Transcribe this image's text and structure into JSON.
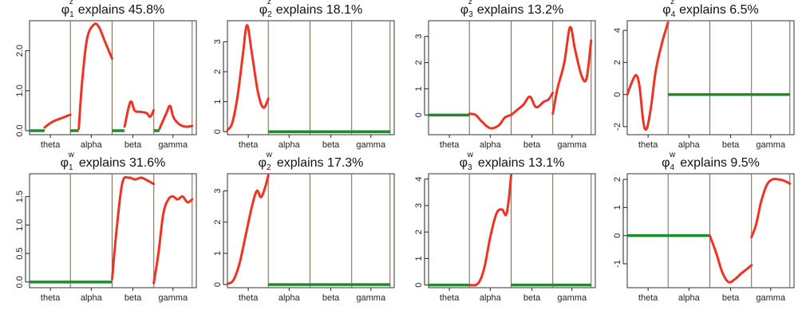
{
  "colors": {
    "curve": "#ee3322",
    "zero": "#1e8c2e",
    "divider": "#7a6450",
    "frame": "#333333",
    "axis": "#222222"
  },
  "chart_data": [
    {
      "type": "line",
      "symbol": "φ",
      "sup": "z",
      "sub": "1",
      "title_suffix": "explains 45.8%",
      "bands": [
        "theta",
        "alpha",
        "beta",
        "gamma"
      ],
      "ylim": [
        -0.1,
        2.75
      ],
      "yticks": [
        {
          "value": 0.0,
          "label": "0.0"
        },
        {
          "value": 1.0,
          "label": "1.0"
        },
        {
          "value": 2.0,
          "label": "2.0"
        }
      ],
      "segments": [
        {
          "kind": "zero",
          "band": 0,
          "from": 0,
          "to": 0.37
        },
        {
          "kind": "curve",
          "band": 0,
          "from": 0.37,
          "to": 1,
          "points": [
            [
              0,
              0.08
            ],
            [
              0.2,
              0.18
            ],
            [
              0.4,
              0.25
            ],
            [
              0.6,
              0.3
            ],
            [
              0.8,
              0.35
            ],
            [
              1,
              0.4
            ]
          ]
        },
        {
          "kind": "zero",
          "band": 1,
          "from": 0,
          "to": 0.2
        },
        {
          "kind": "curve",
          "band": 1,
          "from": 0.2,
          "to": 1,
          "points": [
            [
              0,
              0.05
            ],
            [
              0.1,
              1.2
            ],
            [
              0.25,
              2.3
            ],
            [
              0.45,
              2.65
            ],
            [
              0.6,
              2.6
            ],
            [
              0.8,
              2.2
            ],
            [
              1,
              1.8
            ]
          ]
        },
        {
          "kind": "zero",
          "band": 2,
          "from": 0,
          "to": 0.3
        },
        {
          "kind": "curve",
          "band": 2,
          "from": 0.3,
          "to": 1,
          "points": [
            [
              0,
              0.1
            ],
            [
              0.2,
              0.72
            ],
            [
              0.35,
              0.5
            ],
            [
              0.55,
              0.47
            ],
            [
              0.75,
              0.44
            ],
            [
              0.88,
              0.35
            ],
            [
              1,
              0.52
            ]
          ]
        },
        {
          "kind": "zero",
          "band": 3,
          "from": 0,
          "to": 0.15
        },
        {
          "kind": "curve",
          "band": 3,
          "from": 0.15,
          "to": 1,
          "points": [
            [
              0,
              0.05
            ],
            [
              0.2,
              0.42
            ],
            [
              0.32,
              0.62
            ],
            [
              0.42,
              0.35
            ],
            [
              0.55,
              0.2
            ],
            [
              0.7,
              0.12
            ],
            [
              0.85,
              0.1
            ],
            [
              1,
              0.12
            ]
          ]
        }
      ]
    },
    {
      "type": "line",
      "symbol": "φ",
      "sup": "z",
      "sub": "2",
      "title_suffix": "explains 18.1%",
      "bands": [
        "theta",
        "alpha",
        "beta",
        "gamma"
      ],
      "ylim": [
        -0.1,
        3.7
      ],
      "yticks": [
        {
          "value": 0,
          "label": "0"
        },
        {
          "value": 1,
          "label": "1"
        },
        {
          "value": 2,
          "label": "2"
        },
        {
          "value": 3,
          "label": "3"
        }
      ],
      "segments": [
        {
          "kind": "curve",
          "band": 0,
          "from": 0,
          "to": 1,
          "points": [
            [
              0,
              0.05
            ],
            [
              0.12,
              0.3
            ],
            [
              0.25,
              1.2
            ],
            [
              0.38,
              2.6
            ],
            [
              0.48,
              3.55
            ],
            [
              0.6,
              2.6
            ],
            [
              0.75,
              1.3
            ],
            [
              0.88,
              0.8
            ],
            [
              1,
              1.1
            ]
          ]
        },
        {
          "kind": "zero",
          "band": 1,
          "from": 0,
          "to": 1
        },
        {
          "kind": "zero",
          "band": 2,
          "from": 0,
          "to": 1
        },
        {
          "kind": "zero",
          "band": 3,
          "from": 0,
          "to": 1
        }
      ]
    },
    {
      "type": "line",
      "symbol": "φ",
      "sup": "z",
      "sub": "3",
      "title_suffix": "explains 13.2%",
      "bands": [
        "theta",
        "alpha",
        "beta",
        "gamma"
      ],
      "ylim": [
        -0.75,
        3.6
      ],
      "yticks": [
        {
          "value": 0,
          "label": "0"
        },
        {
          "value": 1,
          "label": "1"
        },
        {
          "value": 2,
          "label": "2"
        },
        {
          "value": 3,
          "label": "3"
        }
      ],
      "segments": [
        {
          "kind": "zero",
          "band": 0,
          "from": 0,
          "to": 1
        },
        {
          "kind": "curve",
          "band": 1,
          "from": 0,
          "to": 1,
          "points": [
            [
              0,
              0.05
            ],
            [
              0.15,
              0.0
            ],
            [
              0.3,
              -0.25
            ],
            [
              0.5,
              -0.5
            ],
            [
              0.7,
              -0.4
            ],
            [
              0.85,
              -0.1
            ],
            [
              1,
              0.0
            ]
          ]
        },
        {
          "kind": "curve",
          "band": 2,
          "from": 0,
          "to": 1,
          "points": [
            [
              0,
              0.0
            ],
            [
              0.15,
              0.2
            ],
            [
              0.3,
              0.4
            ],
            [
              0.45,
              0.7
            ],
            [
              0.6,
              0.3
            ],
            [
              0.78,
              0.5
            ],
            [
              0.9,
              0.6
            ],
            [
              1,
              0.85
            ]
          ]
        },
        {
          "kind": "curve",
          "band": 3,
          "from": 0,
          "to": 1,
          "points": [
            [
              0,
              0.05
            ],
            [
              0.12,
              1.0
            ],
            [
              0.3,
              2.0
            ],
            [
              0.45,
              3.35
            ],
            [
              0.58,
              2.5
            ],
            [
              0.75,
              1.5
            ],
            [
              0.88,
              1.4
            ],
            [
              1,
              2.85
            ]
          ]
        }
      ]
    },
    {
      "type": "line",
      "symbol": "φ",
      "sup": "z",
      "sub": "4",
      "title_suffix": "explains 6.5%",
      "bands": [
        "theta",
        "alpha",
        "beta",
        "gamma"
      ],
      "ylim": [
        -2.5,
        4.6
      ],
      "yticks": [
        {
          "value": -2,
          "label": "-2"
        },
        {
          "value": 0,
          "label": "0"
        },
        {
          "value": 2,
          "label": "2"
        },
        {
          "value": 4,
          "label": "4"
        }
      ],
      "segments": [
        {
          "kind": "curve",
          "band": 0,
          "from": 0,
          "to": 1,
          "points": [
            [
              0,
              0.0
            ],
            [
              0.12,
              0.8
            ],
            [
              0.22,
              1.2
            ],
            [
              0.3,
              0.5
            ],
            [
              0.4,
              -1.8
            ],
            [
              0.48,
              -2.1
            ],
            [
              0.58,
              -0.8
            ],
            [
              0.7,
              1.5
            ],
            [
              0.85,
              3.2
            ],
            [
              1,
              4.5
            ]
          ]
        },
        {
          "kind": "zero",
          "band": 1,
          "from": 0,
          "to": 1
        },
        {
          "kind": "zero",
          "band": 2,
          "from": 0,
          "to": 1
        },
        {
          "kind": "zero",
          "band": 3,
          "from": 0,
          "to": 1
        }
      ]
    },
    {
      "type": "line",
      "symbol": "φ",
      "sup": "w",
      "sub": "1",
      "title_suffix": "explains 31.6%",
      "bands": [
        "theta",
        "alpha",
        "beta",
        "gamma"
      ],
      "ylim": [
        -0.1,
        1.9
      ],
      "yticks": [
        {
          "value": 0.0,
          "label": "0.0"
        },
        {
          "value": 0.5,
          "label": "0.5"
        },
        {
          "value": 1.0,
          "label": "1.0"
        },
        {
          "value": 1.5,
          "label": "1.5"
        }
      ],
      "segments": [
        {
          "kind": "zero",
          "band": 0,
          "from": 0,
          "to": 1
        },
        {
          "kind": "zero",
          "band": 1,
          "from": 0,
          "to": 1
        },
        {
          "kind": "curve",
          "band": 2,
          "from": 0,
          "to": 1,
          "points": [
            [
              0,
              0.05
            ],
            [
              0.12,
              1.0
            ],
            [
              0.25,
              1.75
            ],
            [
              0.4,
              1.83
            ],
            [
              0.55,
              1.8
            ],
            [
              0.7,
              1.83
            ],
            [
              0.85,
              1.78
            ],
            [
              1,
              1.72
            ]
          ]
        },
        {
          "kind": "curve",
          "band": 3,
          "from": 0,
          "to": 1,
          "points": [
            [
              0,
              -0.02
            ],
            [
              0.12,
              0.5
            ],
            [
              0.25,
              1.2
            ],
            [
              0.38,
              1.45
            ],
            [
              0.5,
              1.5
            ],
            [
              0.62,
              1.45
            ],
            [
              0.75,
              1.5
            ],
            [
              0.88,
              1.4
            ],
            [
              1,
              1.45
            ]
          ]
        }
      ]
    },
    {
      "type": "line",
      "symbol": "φ",
      "sup": "w",
      "sub": "2",
      "title_suffix": "explains 17.3%",
      "bands": [
        "theta",
        "alpha",
        "beta",
        "gamma"
      ],
      "ylim": [
        -0.1,
        3.55
      ],
      "yticks": [
        {
          "value": 0,
          "label": "0"
        },
        {
          "value": 1,
          "label": "1"
        },
        {
          "value": 2,
          "label": "2"
        },
        {
          "value": 3,
          "label": "3"
        }
      ],
      "segments": [
        {
          "kind": "curve",
          "band": 0,
          "from": 0,
          "to": 1,
          "points": [
            [
              0,
              0.02
            ],
            [
              0.15,
              0.15
            ],
            [
              0.3,
              0.7
            ],
            [
              0.45,
              1.6
            ],
            [
              0.6,
              2.5
            ],
            [
              0.72,
              3.0
            ],
            [
              0.82,
              2.8
            ],
            [
              0.92,
              3.1
            ],
            [
              1,
              3.5
            ]
          ]
        },
        {
          "kind": "zero",
          "band": 1,
          "from": 0,
          "to": 1
        },
        {
          "kind": "zero",
          "band": 2,
          "from": 0,
          "to": 1
        },
        {
          "kind": "zero",
          "band": 3,
          "from": 0,
          "to": 1
        }
      ]
    },
    {
      "type": "line",
      "symbol": "φ",
      "sup": "w",
      "sub": "3",
      "title_suffix": "explains 13.1%",
      "bands": [
        "theta",
        "alpha",
        "beta",
        "gamma"
      ],
      "ylim": [
        -0.1,
        4.2
      ],
      "yticks": [
        {
          "value": 0,
          "label": "0"
        },
        {
          "value": 1,
          "label": "1"
        },
        {
          "value": 2,
          "label": "2"
        },
        {
          "value": 3,
          "label": "3"
        },
        {
          "value": 4,
          "label": "4"
        }
      ],
      "segments": [
        {
          "kind": "zero",
          "band": 0,
          "from": 0,
          "to": 1
        },
        {
          "kind": "curve",
          "band": 1,
          "from": 0,
          "to": 1,
          "points": [
            [
              0,
              0.0
            ],
            [
              0.2,
              0.05
            ],
            [
              0.35,
              0.6
            ],
            [
              0.5,
              1.8
            ],
            [
              0.65,
              2.7
            ],
            [
              0.78,
              2.85
            ],
            [
              0.88,
              2.65
            ],
            [
              0.95,
              3.3
            ],
            [
              1,
              4.15
            ]
          ]
        },
        {
          "kind": "zero",
          "band": 2,
          "from": 0,
          "to": 1
        },
        {
          "kind": "zero",
          "band": 3,
          "from": 0,
          "to": 1
        }
      ]
    },
    {
      "type": "line",
      "symbol": "φ",
      "sup": "w",
      "sub": "4",
      "title_suffix": "explains 9.5%",
      "bands": [
        "theta",
        "alpha",
        "beta",
        "gamma"
      ],
      "ylim": [
        -1.85,
        2.2
      ],
      "yticks": [
        {
          "value": -1,
          "label": "-1"
        },
        {
          "value": 0,
          "label": "0"
        },
        {
          "value": 1,
          "label": "1"
        },
        {
          "value": 2,
          "label": "2"
        }
      ],
      "segments": [
        {
          "kind": "zero",
          "band": 0,
          "from": 0,
          "to": 1
        },
        {
          "kind": "zero",
          "band": 1,
          "from": 0,
          "to": 1
        },
        {
          "kind": "curve",
          "band": 2,
          "from": 0,
          "to": 1,
          "points": [
            [
              0,
              0.0
            ],
            [
              0.15,
              -0.6
            ],
            [
              0.3,
              -1.3
            ],
            [
              0.45,
              -1.65
            ],
            [
              0.6,
              -1.55
            ],
            [
              0.75,
              -1.35
            ],
            [
              0.88,
              -1.2
            ],
            [
              1,
              -1.05
            ]
          ]
        },
        {
          "kind": "curve",
          "band": 3,
          "from": 0,
          "to": 1,
          "points": [
            [
              0,
              -0.05
            ],
            [
              0.12,
              0.4
            ],
            [
              0.25,
              1.2
            ],
            [
              0.4,
              1.8
            ],
            [
              0.55,
              2.0
            ],
            [
              0.7,
              2.0
            ],
            [
              0.85,
              1.95
            ],
            [
              1,
              1.85
            ]
          ]
        }
      ]
    }
  ]
}
